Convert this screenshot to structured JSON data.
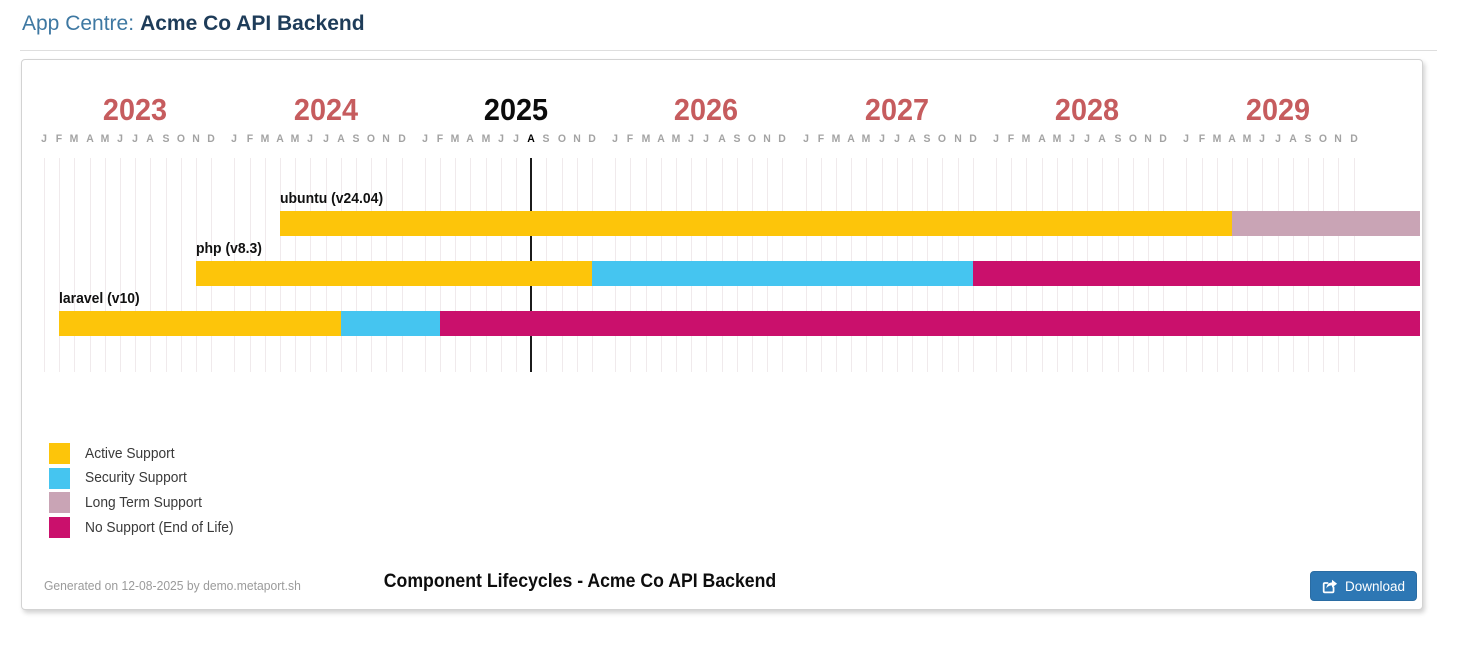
{
  "colors": {
    "header_prefix": "#3e78a2",
    "header_name": "#1e3c59",
    "year_label": "#c65c5e",
    "current_year_label": "#0c0c0c",
    "month_label": "#a3a3a3",
    "grid_line": "#f0eaec",
    "accent_blue": "#2d77b4",
    "accent_blue_border": "#2a6ca3"
  },
  "header": {
    "prefix": "App Centre:",
    "app_name": "Acme Co API Backend"
  },
  "chart_data": {
    "type": "gantt",
    "title": "Component Lifecycles - Acme Co API Backend",
    "x_axis": {
      "base_year": 2023,
      "years": [
        2023,
        2024,
        2025,
        2026,
        2027,
        2028,
        2029
      ],
      "month_letters": [
        "J",
        "F",
        "M",
        "A",
        "M",
        "J",
        "J",
        "A",
        "S",
        "O",
        "N",
        "D"
      ],
      "current_month": "2025-08",
      "range": {
        "start": "2023-01",
        "end": "2029-12"
      }
    },
    "components": [
      {
        "name": "ubuntu (v24.04)",
        "start": "2024-04",
        "segments": [
          {
            "status": "active",
            "until": "2029-04"
          },
          {
            "status": "lts",
            "until": "edge"
          }
        ]
      },
      {
        "name": "php (v8.3)",
        "start": "2023-11",
        "segments": [
          {
            "status": "active",
            "until": "2025-12"
          },
          {
            "status": "security",
            "until": "2027-12"
          },
          {
            "status": "eol",
            "until": "edge"
          }
        ]
      },
      {
        "name": "laravel (v10)",
        "start": "2023-02",
        "segments": [
          {
            "status": "active",
            "until": "2024-08"
          },
          {
            "status": "security",
            "until": "2025-02"
          },
          {
            "status": "eol",
            "until": "edge"
          }
        ]
      }
    ],
    "legend": [
      {
        "status": "active",
        "label": "Active Support",
        "color": "#fdc50a"
      },
      {
        "status": "security",
        "label": "Security Support",
        "color": "#45c5f0"
      },
      {
        "status": "lts",
        "label": "Long Term Support",
        "color": "#c9a4b5"
      },
      {
        "status": "eol",
        "label": "No Support (End of Life)",
        "color": "#ca106c"
      }
    ],
    "layout_hints": {
      "legend_position": "bottom-left",
      "grid": "vertical-monthly"
    }
  },
  "footer": {
    "generated_note": "Generated on 12-08-2025 by demo.metaport.sh",
    "download_label": "Download",
    "download_icon": "export-icon"
  }
}
